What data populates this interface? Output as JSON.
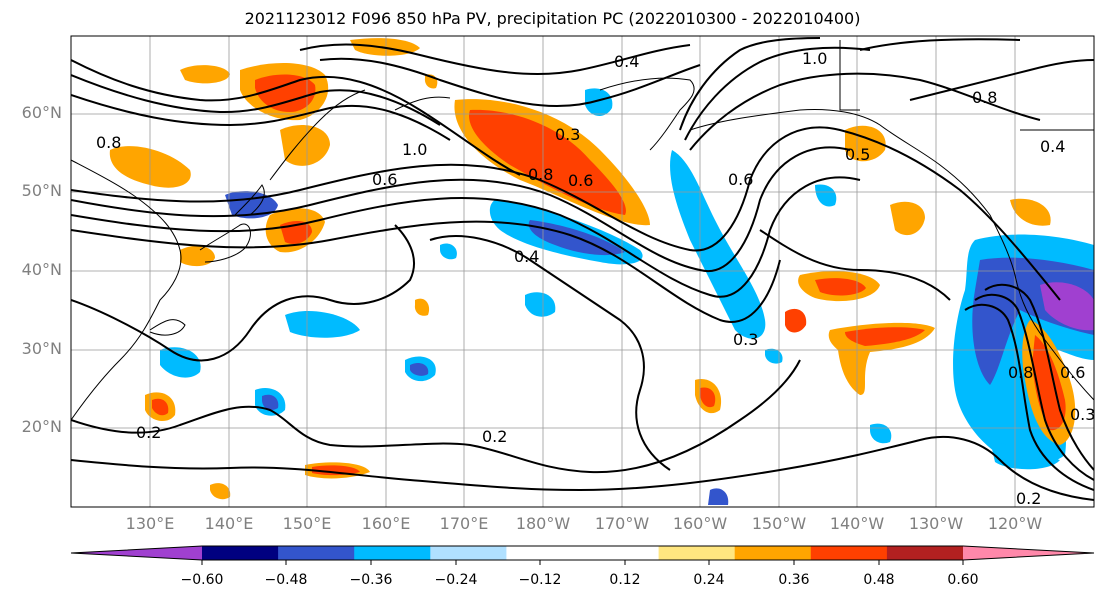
{
  "figure": {
    "title": "2021123012 F096 850 hPa PV, precipitation PC (2022010300 - 2022010400)"
  },
  "map": {
    "lat_labels": [
      "60°N",
      "50°N",
      "40°N",
      "30°N",
      "20°N"
    ],
    "lon_labels": [
      "130°E",
      "140°E",
      "150°E",
      "160°E",
      "170°E",
      "180°W",
      "170°W",
      "160°W",
      "150°W",
      "140°W",
      "130°W",
      "120°W"
    ],
    "contour_labels": [
      "0.4",
      "1.0",
      "0.8",
      "0.8",
      "1.0",
      "0.3",
      "0.8",
      "0.6",
      "0.6",
      "0.4",
      "0.4",
      "0.3",
      "0.5",
      "0.8",
      "0.6",
      "0.2",
      "0.2",
      "0.2",
      "0.3",
      "0.6"
    ],
    "colors": {
      "neg_060": "#a040d0",
      "neg_048": "#000080",
      "neg_036": "#3355cc",
      "neg_024": "#00bbff",
      "neg_012": "#b0e0ff",
      "zero": "#ffffff",
      "pos_012": "#ffe680",
      "pos_024": "#ffa500",
      "pos_036": "#ff4000",
      "pos_048": "#b22020",
      "pos_060": "#ff88aa"
    }
  },
  "colorbar": {
    "tick_labels": [
      "−0.60",
      "−0.48",
      "−0.36",
      "−0.24",
      "−0.12",
      "0.12",
      "0.24",
      "0.36",
      "0.48",
      "0.60"
    ],
    "bins": [
      "#a040d0",
      "#000080",
      "#3355cc",
      "#00bbff",
      "#b0e0ff",
      "#ffffff",
      "#ffffff",
      "#ffe680",
      "#ffa500",
      "#ff4000",
      "#b22020",
      "#ff88aa"
    ]
  }
}
